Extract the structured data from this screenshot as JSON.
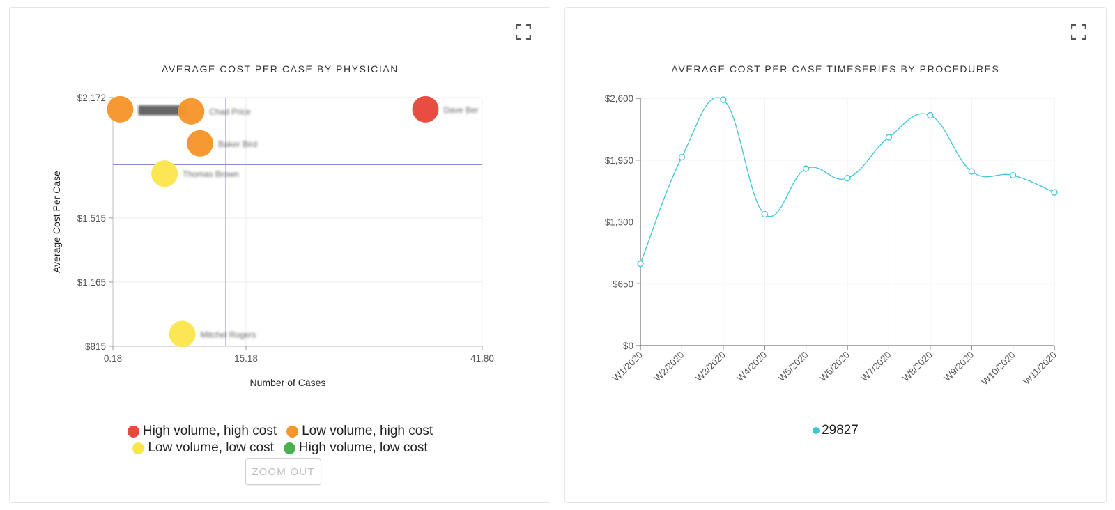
{
  "left_panel": {
    "title": "AVERAGE COST PER CASE BY PHYSICIAN",
    "zoom_out_label": "ZOOM OUT",
    "legend": [
      {
        "label": "High volume, high cost",
        "color": "#e8473c"
      },
      {
        "label": "Low volume, high cost",
        "color": "#f7962b"
      },
      {
        "label": "Low volume, low cost",
        "color": "#fbe54d"
      },
      {
        "label": "High volume, low cost",
        "color": "#4caf50"
      }
    ]
  },
  "right_panel": {
    "title": "AVERAGE COST PER CASE TIMESERIES BY PROCEDURES",
    "legend_label": "29827",
    "legend_color": "#3ec6d6"
  },
  "chart_data": [
    {
      "type": "scatter",
      "title": "AVERAGE COST PER CASE BY PHYSICIAN",
      "xlabel": "Number of Cases",
      "ylabel": "Average Cost Per Case",
      "x_ticks": [
        "0.18",
        "15.18",
        "41.80"
      ],
      "y_ticks": [
        "$815",
        "$1,165",
        "$1,515",
        "$2,172"
      ],
      "xlim": [
        0.18,
        41.8
      ],
      "ylim": [
        815,
        2172
      ],
      "reference_lines": {
        "x": 12.9,
        "y": 1805
      },
      "points": [
        {
          "x": 1.0,
          "y": 2108,
          "category": "Low volume, high cost",
          "color": "#f7962b",
          "label": "████████"
        },
        {
          "x": 9.0,
          "y": 2097,
          "category": "Low volume, high cost",
          "color": "#f7962b",
          "label": "Chad Price"
        },
        {
          "x": 10.0,
          "y": 1922,
          "category": "Low volume, high cost",
          "color": "#f7962b",
          "label": "Baker Bird"
        },
        {
          "x": 35.4,
          "y": 2108,
          "category": "High volume, high cost",
          "color": "#e8473c",
          "label": "Dave Ber"
        },
        {
          "x": 6.0,
          "y": 1757,
          "category": "Low volume, low cost",
          "color": "#fbe54d",
          "label": "Thomas Brown"
        },
        {
          "x": 8.0,
          "y": 882,
          "category": "Low volume, low cost",
          "color": "#fbe54d",
          "label": "Mitchel Rogers"
        }
      ],
      "legend": [
        "High volume, high cost",
        "Low volume, high cost",
        "Low volume, low cost",
        "High volume, low cost"
      ]
    },
    {
      "type": "line",
      "title": "AVERAGE COST PER CASE TIMESERIES BY PROCEDURES",
      "categories": [
        "W1/2020",
        "W2/2020",
        "W3/2020",
        "W4/2020",
        "W5/2020",
        "W6/2020",
        "W7/2020",
        "W8/2020",
        "W9/2020",
        "W10/2020",
        "W11/2020"
      ],
      "y_ticks": [
        "$0",
        "$650",
        "$1,300",
        "$1,950",
        "$2,600"
      ],
      "ylim": [
        0,
        2600
      ],
      "series": [
        {
          "name": "29827",
          "color": "#3ec6d6",
          "values": [
            860,
            1980,
            2585,
            1380,
            1860,
            1760,
            2190,
            2420,
            1830,
            1790,
            1610
          ]
        }
      ]
    }
  ]
}
